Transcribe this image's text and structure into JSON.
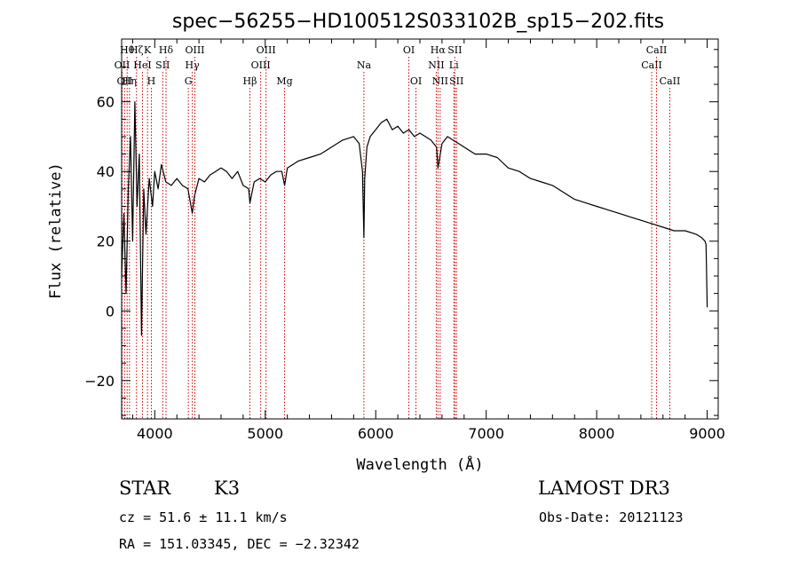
{
  "chart_data": {
    "type": "line",
    "title": "spec−56255−HD100512S033102B_sp15−202.fits",
    "xlabel": "Wavelength (Å)",
    "ylabel": "Flux (relative)",
    "xlim": [
      3700,
      9100
    ],
    "ylim": [
      -31,
      78
    ],
    "xticks": [
      4000,
      5000,
      6000,
      7000,
      8000,
      9000
    ],
    "yticks": [
      -20,
      0,
      20,
      40,
      60
    ],
    "series": [
      {
        "name": "flux",
        "x": [
          3700,
          3720,
          3740,
          3760,
          3780,
          3800,
          3820,
          3840,
          3860,
          3880,
          3900,
          3920,
          3950,
          3980,
          4000,
          4030,
          4060,
          4100,
          4150,
          4200,
          4250,
          4300,
          4340,
          4360,
          4400,
          4450,
          4500,
          4550,
          4600,
          4650,
          4700,
          4750,
          4800,
          4850,
          4861,
          4900,
          4950,
          5000,
          5050,
          5100,
          5150,
          5175,
          5200,
          5250,
          5300,
          5400,
          5500,
          5600,
          5700,
          5800,
          5850,
          5880,
          5893,
          5900,
          5920,
          5950,
          6000,
          6050,
          6100,
          6150,
          6200,
          6250,
          6300,
          6350,
          6400,
          6450,
          6500,
          6550,
          6563,
          6600,
          6650,
          6700,
          6750,
          6800,
          6850,
          6900,
          6950,
          7000,
          7100,
          7200,
          7300,
          7400,
          7500,
          7600,
          7700,
          7800,
          7900,
          8000,
          8100,
          8200,
          8300,
          8400,
          8500,
          8600,
          8700,
          8800,
          8900,
          8950,
          8980,
          8990,
          9000
        ],
        "y": [
          10,
          28,
          5,
          35,
          50,
          20,
          60,
          30,
          45,
          -7,
          35,
          22,
          38,
          30,
          40,
          35,
          42,
          37,
          36,
          38,
          36,
          35,
          28,
          33,
          38,
          37,
          39,
          40,
          41,
          40,
          38,
          40,
          36,
          35,
          31,
          37,
          38,
          37,
          39,
          40,
          40,
          36,
          41,
          42,
          43,
          44,
          45,
          47,
          49,
          50,
          48,
          40,
          21,
          38,
          47,
          50,
          52,
          54,
          55,
          52,
          53,
          51,
          52,
          50,
          51,
          50,
          49,
          47,
          41,
          48,
          50,
          49,
          48,
          47,
          46,
          45,
          45,
          45,
          44,
          41,
          40,
          38,
          37,
          36,
          34,
          32,
          31,
          30,
          29,
          28,
          27,
          26,
          25,
          24,
          23,
          23,
          22,
          21,
          20,
          19,
          1
        ]
      }
    ],
    "lines": [
      {
        "wl": 3704,
        "label": "OII",
        "row": 2
      },
      {
        "wl": 3727,
        "label": "OII",
        "row": 3
      },
      {
        "wl": 3750,
        "label": "Hθ",
        "row": 1
      },
      {
        "wl": 3771,
        "label": "Hη",
        "row": 3
      },
      {
        "wl": 3835,
        "label": "Hζ",
        "row": 1
      },
      {
        "wl": 3889,
        "label": "HeI",
        "row": 2
      },
      {
        "wl": 3934,
        "label": "K",
        "row": 1
      },
      {
        "wl": 3969,
        "label": "H",
        "row": 3
      },
      {
        "wl": 4072,
        "label": "SII",
        "row": 2
      },
      {
        "wl": 4102,
        "label": "Hδ",
        "row": 1
      },
      {
        "wl": 4304,
        "label": "G",
        "row": 3
      },
      {
        "wl": 4340,
        "label": "Hγ",
        "row": 2
      },
      {
        "wl": 4363,
        "label": "OIII",
        "row": 1
      },
      {
        "wl": 4861,
        "label": "Hβ",
        "row": 3
      },
      {
        "wl": 4959,
        "label": "OIII",
        "row": 2
      },
      {
        "wl": 5007,
        "label": "OIII",
        "row": 1
      },
      {
        "wl": 5175,
        "label": "Mg",
        "row": 3
      },
      {
        "wl": 5893,
        "label": "Na",
        "row": 2
      },
      {
        "wl": 6300,
        "label": "OI",
        "row": 1
      },
      {
        "wl": 6364,
        "label": "OI",
        "row": 3
      },
      {
        "wl": 6548,
        "label": "NII",
        "row": 2
      },
      {
        "wl": 6563,
        "label": "Hα",
        "row": 1
      },
      {
        "wl": 6583,
        "label": "NII",
        "row": 3
      },
      {
        "wl": 6707,
        "label": "Li",
        "row": 2
      },
      {
        "wl": 6716,
        "label": "SII",
        "row": 1
      },
      {
        "wl": 6731,
        "label": "SII",
        "row": 3
      },
      {
        "wl": 8498,
        "label": "CaII",
        "row": 2
      },
      {
        "wl": 8542,
        "label": "CaII",
        "row": 1
      },
      {
        "wl": 8662,
        "label": "CaII",
        "row": 3
      }
    ]
  },
  "info": {
    "object_class": "STAR",
    "subclass": "K3",
    "survey": "LAMOST DR3",
    "cz": "cz = 51.6 ± 11.1 km/s",
    "obs_date": "Obs-Date: 20121123",
    "coords": "RA = 151.03345, DEC =  −2.32342"
  },
  "colors": {
    "axes": "#000000",
    "line_marker": "#cc0000",
    "spectrum": "#000000"
  }
}
